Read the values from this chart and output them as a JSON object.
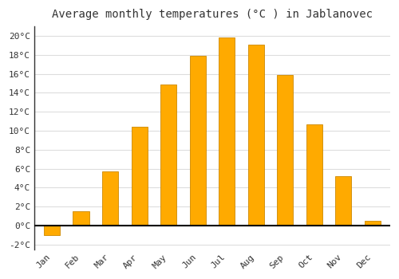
{
  "title": "Average monthly temperatures (°C ) in Jablanovec",
  "months": [
    "Jan",
    "Feb",
    "Mar",
    "Apr",
    "May",
    "Jun",
    "Jul",
    "Aug",
    "Sep",
    "Oct",
    "Nov",
    "Dec"
  ],
  "values": [
    -1.0,
    1.5,
    5.7,
    10.4,
    14.9,
    17.9,
    19.8,
    19.1,
    15.9,
    10.7,
    5.2,
    0.5
  ],
  "bar_color": "#FFAA00",
  "bar_edge_color": "#CC8800",
  "ylim": [
    -2.5,
    21
  ],
  "yticks": [
    -2,
    0,
    2,
    4,
    6,
    8,
    10,
    12,
    14,
    16,
    18,
    20
  ],
  "ytick_labels": [
    "-2°C",
    "0°C",
    "2°C",
    "4°C",
    "6°C",
    "8°C",
    "10°C",
    "12°C",
    "14°C",
    "16°C",
    "18°C",
    "20°C"
  ],
  "background_color": "#ffffff",
  "plot_bg_color": "#ffffff",
  "grid_color": "#dddddd",
  "zero_line_color": "#000000",
  "axis_line_color": "#333333",
  "title_fontsize": 10,
  "tick_fontsize": 8,
  "figsize": [
    5.0,
    3.5
  ],
  "dpi": 100,
  "bar_width": 0.55
}
